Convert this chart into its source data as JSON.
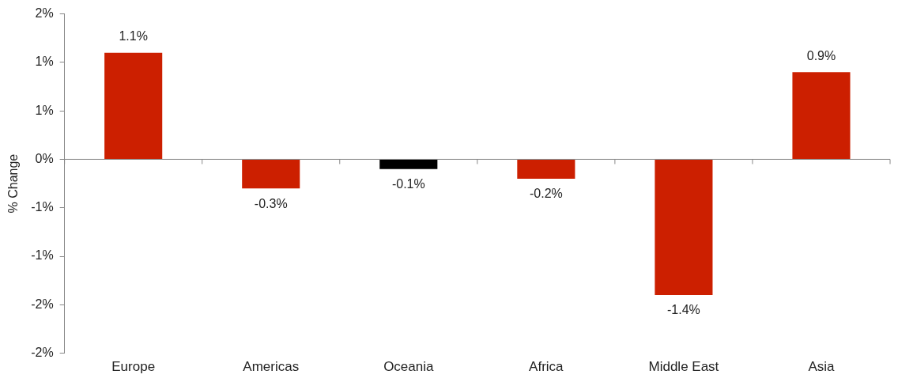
{
  "chart_data": {
    "type": "bar",
    "ylabel": "% Change",
    "categories": [
      "Europe",
      "Americas",
      "Oceania",
      "Africa",
      "Middle East",
      "Asia"
    ],
    "values": [
      1.1,
      -0.3,
      -0.1,
      -0.2,
      -1.4,
      0.9
    ],
    "colors": [
      "#cc1f00",
      "#cc1f00",
      "#000000",
      "#cc1f00",
      "#cc1f00",
      "#cc1f00"
    ],
    "value_labels": [
      "1.1%",
      "-0.3%",
      "-0.1%",
      "-0.2%",
      "-1.4%",
      "0.9%"
    ],
    "ylim": [
      -2,
      1.5
    ],
    "yticks": [
      {
        "value": 1.5,
        "label": "2%"
      },
      {
        "value": 1,
        "label": "1%"
      },
      {
        "value": 0.5,
        "label": "1%"
      },
      {
        "value": 0,
        "label": "0%"
      },
      {
        "value": -0.5,
        "label": "-1%"
      },
      {
        "value": -1,
        "label": "-1%"
      },
      {
        "value": -1.5,
        "label": "-2%"
      },
      {
        "value": -2,
        "label": "-2%"
      }
    ],
    "ref_lines": [
      {
        "axis": "y",
        "value": 0,
        "color": "#888888"
      }
    ],
    "grid": false,
    "legend": false
  }
}
